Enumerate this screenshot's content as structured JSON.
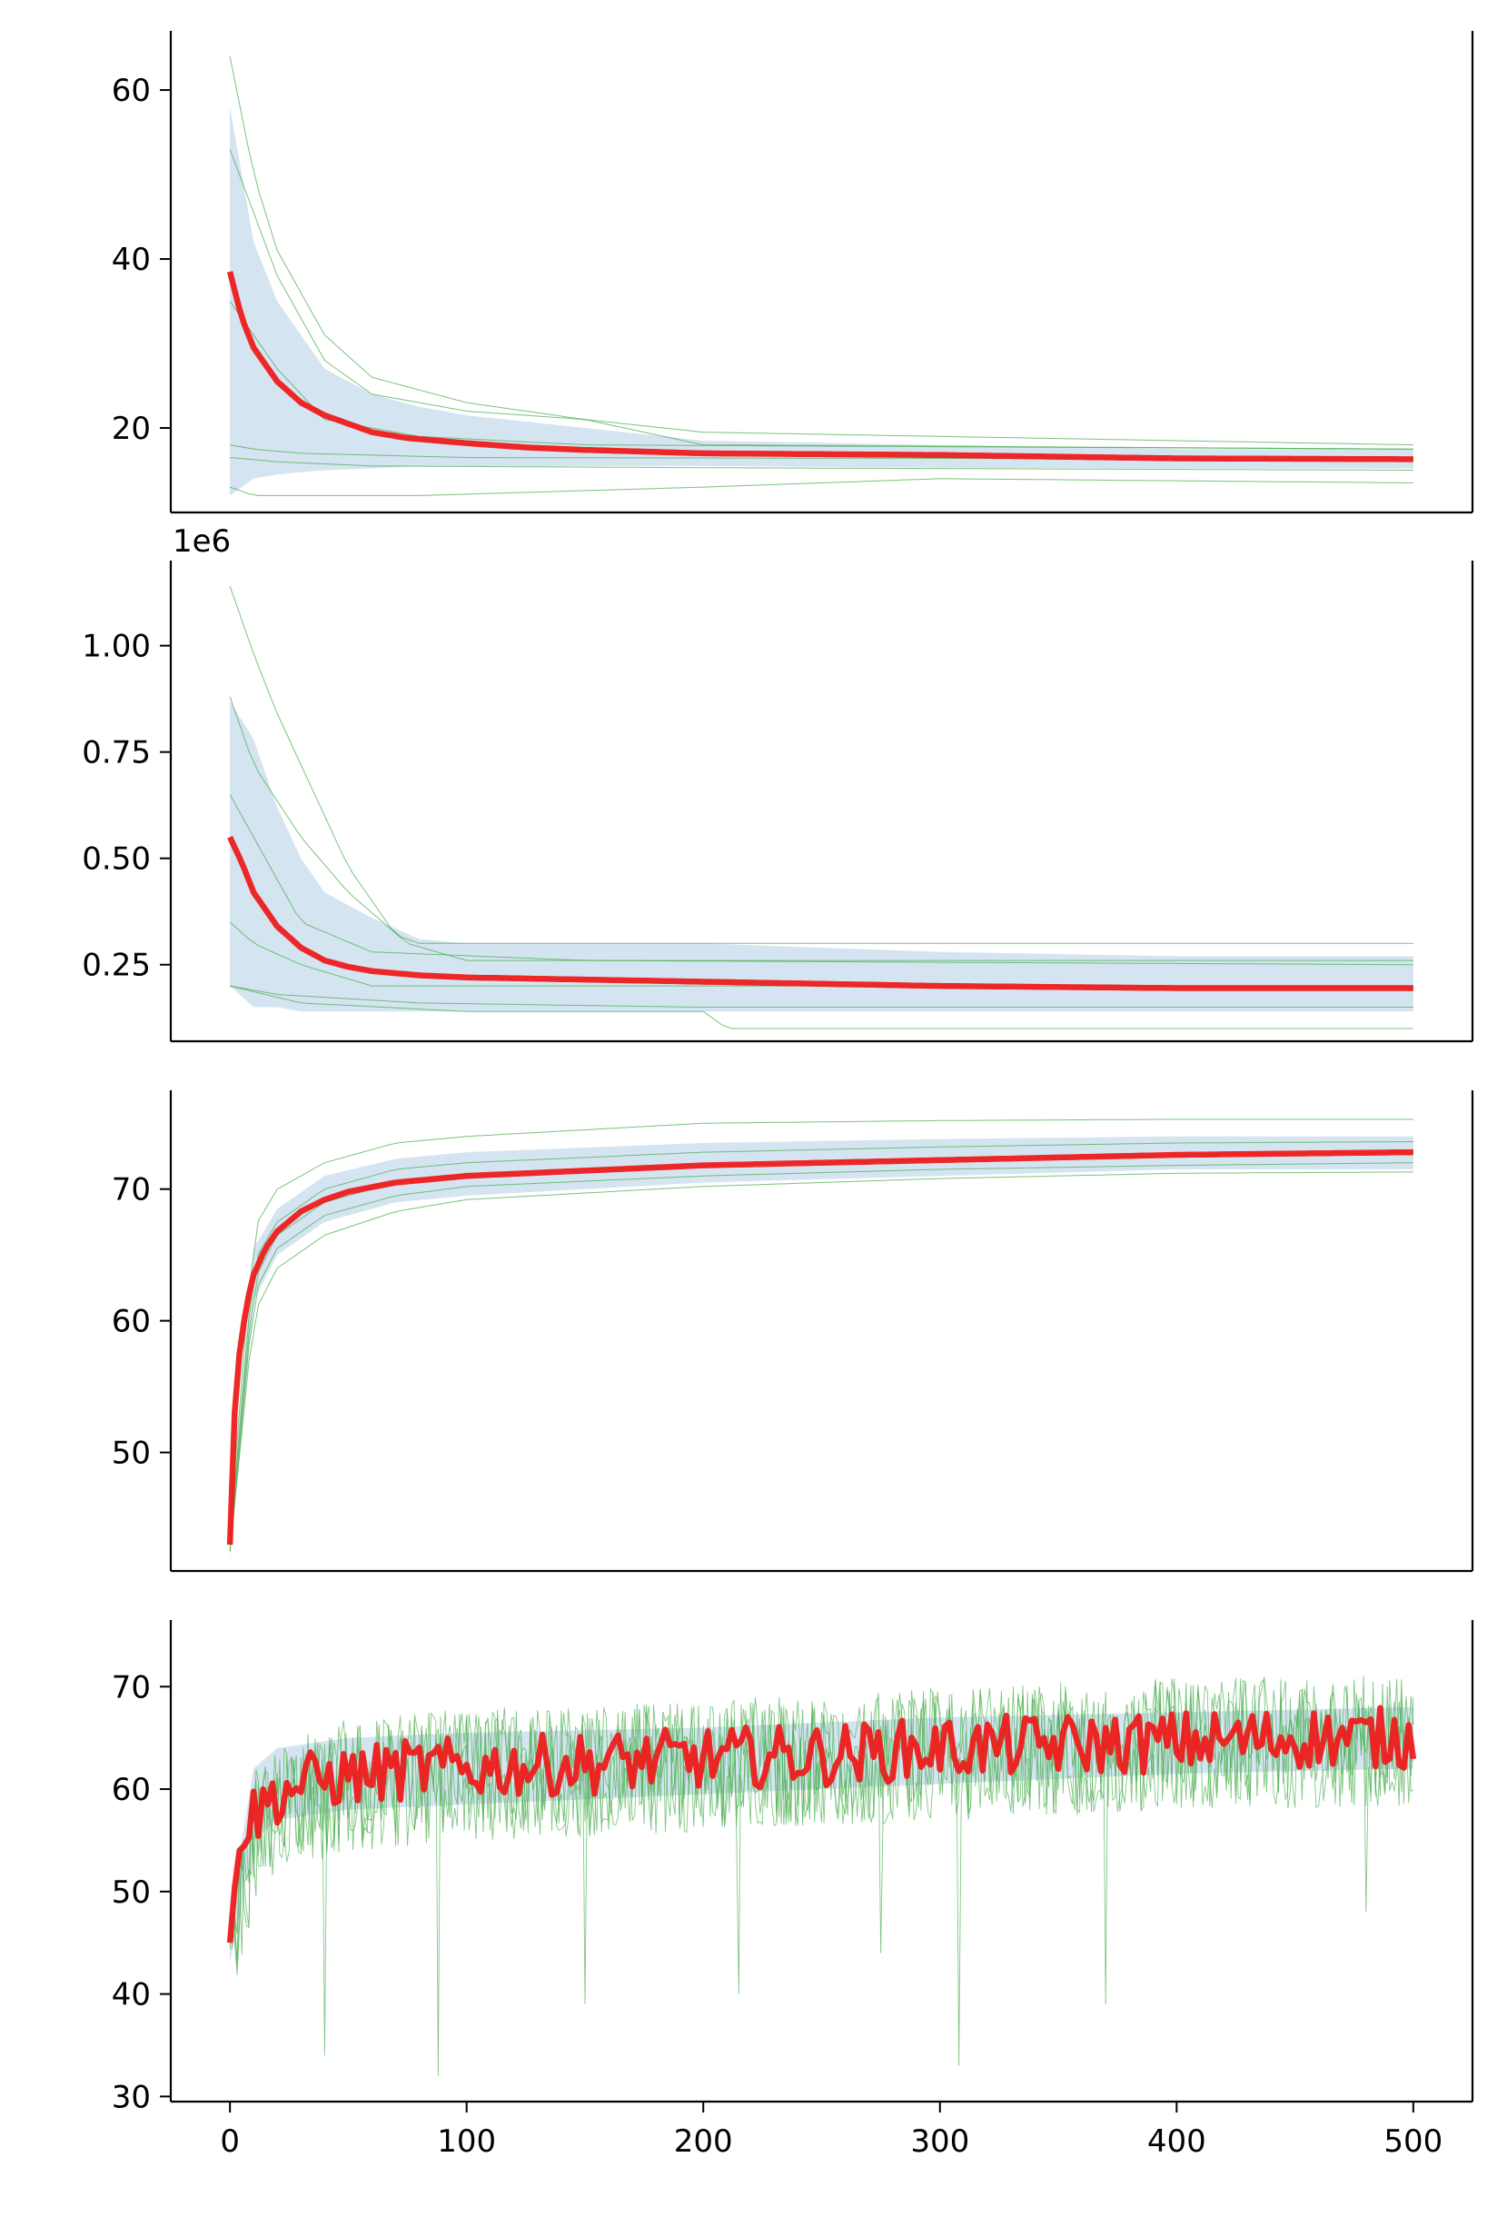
{
  "chart_data": [
    {
      "type": "line",
      "title": "",
      "xlabel": "",
      "ylabel": "",
      "offset_text": "",
      "xlim": [
        -25,
        525
      ],
      "ylim": [
        10,
        67
      ],
      "yticks": [
        20,
        40,
        60
      ],
      "ytick_labels": [
        "20",
        "40",
        "60"
      ],
      "show_xticks": false,
      "grid": false,
      "mean": {
        "name": "mean",
        "x": [
          0,
          5,
          10,
          20,
          30,
          40,
          50,
          60,
          75,
          100,
          125,
          150,
          200,
          300,
          400,
          500
        ],
        "values": [
          38.5,
          33,
          29.5,
          25.5,
          23,
          21.5,
          20.5,
          19.5,
          18.8,
          18.2,
          17.7,
          17.4,
          17.0,
          16.8,
          16.4,
          16.3
        ]
      },
      "band": {
        "x": [
          0,
          10,
          20,
          40,
          60,
          80,
          100,
          150,
          200,
          300,
          400,
          500
        ],
        "upper": [
          58,
          42,
          35,
          27,
          24,
          22.5,
          21.5,
          20,
          18.5,
          18,
          17.5,
          17.5
        ],
        "lower": [
          12,
          14,
          14.5,
          15,
          15.2,
          15.5,
          15.5,
          15.5,
          15.5,
          15.3,
          15.2,
          15.2
        ]
      },
      "runs": [
        {
          "x": [
            0,
            10,
            20,
            40,
            60,
            100,
            150,
            200,
            500
          ],
          "values": [
            64,
            50,
            41,
            31,
            26,
            23,
            21,
            19.5,
            18
          ]
        },
        {
          "x": [
            0,
            20,
            40,
            60,
            100,
            150,
            200,
            500
          ],
          "values": [
            53,
            38,
            28,
            24,
            22,
            21,
            18,
            17.5
          ]
        },
        {
          "x": [
            0,
            10,
            20,
            40,
            80,
            150,
            500
          ],
          "values": [
            35,
            31,
            27,
            21,
            19,
            18,
            17.5
          ]
        },
        {
          "x": [
            0,
            10,
            30,
            100,
            500
          ],
          "values": [
            18,
            17.5,
            17,
            16.5,
            16.3
          ]
        },
        {
          "x": [
            0,
            20,
            60,
            200,
            500
          ],
          "values": [
            16.5,
            16,
            15.5,
            15.3,
            15
          ]
        },
        {
          "x": [
            0,
            10,
            80,
            200,
            300,
            500
          ],
          "values": [
            13,
            12,
            12,
            13,
            14,
            13.5
          ]
        }
      ]
    },
    {
      "type": "line",
      "title": "",
      "xlabel": "",
      "ylabel": "",
      "offset_text": "1e6",
      "xlim": [
        -25,
        525
      ],
      "ylim": [
        0.07,
        1.2
      ],
      "yticks": [
        0.25,
        0.5,
        0.75,
        1.0
      ],
      "ytick_labels": [
        "0.25",
        "0.50",
        "0.75",
        "1.00"
      ],
      "show_xticks": false,
      "grid": false,
      "mean": {
        "name": "mean",
        "x": [
          0,
          5,
          10,
          20,
          30,
          40,
          50,
          60,
          80,
          100,
          150,
          200,
          300,
          400,
          500
        ],
        "values": [
          0.55,
          0.49,
          0.42,
          0.34,
          0.29,
          0.26,
          0.245,
          0.235,
          0.225,
          0.22,
          0.215,
          0.21,
          0.2,
          0.195,
          0.195
        ]
      },
      "band": {
        "x": [
          0,
          10,
          20,
          30,
          40,
          60,
          80,
          100,
          150,
          200,
          300,
          400,
          500
        ],
        "upper": [
          0.87,
          0.78,
          0.62,
          0.5,
          0.42,
          0.36,
          0.31,
          0.3,
          0.3,
          0.3,
          0.28,
          0.27,
          0.27
        ],
        "lower": [
          0.2,
          0.15,
          0.15,
          0.14,
          0.14,
          0.14,
          0.14,
          0.14,
          0.14,
          0.14,
          0.14,
          0.14,
          0.14
        ]
      },
      "runs": [
        {
          "x": [
            0,
            10,
            20,
            30,
            50,
            70,
            80,
            500
          ],
          "values": [
            1.14,
            0.98,
            0.84,
            0.72,
            0.48,
            0.32,
            0.3,
            0.3
          ]
        },
        {
          "x": [
            0,
            10,
            30,
            50,
            75,
            100,
            500
          ],
          "values": [
            0.88,
            0.72,
            0.55,
            0.42,
            0.3,
            0.26,
            0.26
          ]
        },
        {
          "x": [
            0,
            10,
            30,
            60,
            150,
            500
          ],
          "values": [
            0.65,
            0.55,
            0.35,
            0.28,
            0.26,
            0.25
          ]
        },
        {
          "x": [
            0,
            10,
            30,
            60,
            200,
            500
          ],
          "values": [
            0.35,
            0.3,
            0.25,
            0.2,
            0.2,
            0.2
          ]
        },
        {
          "x": [
            0,
            20,
            80,
            200,
            500
          ],
          "values": [
            0.2,
            0.18,
            0.16,
            0.15,
            0.15
          ]
        },
        {
          "x": [
            0,
            30,
            100,
            200,
            210,
            500
          ],
          "values": [
            0.2,
            0.16,
            0.14,
            0.14,
            0.1,
            0.1
          ]
        }
      ]
    },
    {
      "type": "line",
      "title": "",
      "xlabel": "",
      "ylabel": "",
      "offset_text": "",
      "xlim": [
        -25,
        525
      ],
      "ylim": [
        41,
        77.5
      ],
      "yticks": [
        50,
        60,
        70
      ],
      "ytick_labels": [
        "50",
        "60",
        "70"
      ],
      "show_xticks": false,
      "grid": false,
      "mean": {
        "name": "mean",
        "x": [
          0,
          2,
          4,
          6,
          8,
          10,
          15,
          20,
          30,
          40,
          50,
          70,
          100,
          150,
          200,
          300,
          400,
          500
        ],
        "values": [
          43,
          53,
          57.5,
          60,
          62,
          63.5,
          65.5,
          66.8,
          68.3,
          69.2,
          69.8,
          70.5,
          71,
          71.4,
          71.8,
          72.2,
          72.6,
          72.8
        ]
      },
      "band": {
        "x": [
          0,
          10,
          20,
          40,
          70,
          100,
          200,
          300,
          400,
          500
        ],
        "upper": [
          44,
          65.5,
          68.5,
          71,
          72.3,
          72.8,
          73.5,
          73.8,
          74,
          74
        ],
        "lower": [
          42,
          61.5,
          65,
          67.5,
          69,
          69.5,
          70.5,
          71,
          71.5,
          71.5
        ]
      },
      "runs": [
        {
          "x": [
            0,
            10,
            20,
            40,
            70,
            100,
            200,
            300,
            400,
            500
          ],
          "values": [
            44,
            67,
            70,
            72,
            73.5,
            74,
            75,
            75.2,
            75.3,
            75.3
          ]
        },
        {
          "x": [
            0,
            10,
            20,
            40,
            70,
            100,
            200,
            300,
            400,
            500
          ],
          "values": [
            43,
            64.5,
            67.5,
            70,
            71.5,
            72,
            72.8,
            73.2,
            73.5,
            73.6
          ]
        },
        {
          "x": [
            0,
            10,
            20,
            40,
            70,
            100,
            200,
            300,
            400,
            500
          ],
          "values": [
            43,
            63,
            66.5,
            69,
            70.5,
            71.2,
            71.8,
            72.3,
            72.6,
            72.8
          ]
        },
        {
          "x": [
            0,
            10,
            20,
            40,
            70,
            100,
            200,
            300,
            400,
            500
          ],
          "values": [
            42.5,
            62,
            65.5,
            68,
            69.5,
            70.2,
            71,
            71.5,
            71.8,
            72
          ]
        },
        {
          "x": [
            0,
            10,
            20,
            40,
            70,
            100,
            200,
            300,
            400,
            500
          ],
          "values": [
            42.5,
            60.5,
            64,
            66.5,
            68.3,
            69.2,
            70.2,
            70.8,
            71.2,
            71.3
          ]
        }
      ]
    },
    {
      "type": "line",
      "title": "",
      "xlabel": "",
      "ylabel": "",
      "offset_text": "",
      "xlim": [
        -25,
        525
      ],
      "ylim": [
        29.5,
        76.5
      ],
      "yticks": [
        30,
        40,
        50,
        60,
        70
      ],
      "ytick_labels": [
        "30",
        "40",
        "50",
        "60",
        "70"
      ],
      "xticks": [
        0,
        100,
        200,
        300,
        400,
        500
      ],
      "xtick_labels": [
        "0",
        "100",
        "200",
        "300",
        "400",
        "500"
      ],
      "show_xticks": true,
      "grid": false,
      "mean": {
        "name": "mean",
        "x": [
          0,
          3,
          6,
          10,
          15,
          20,
          30,
          40,
          60,
          80,
          100,
          150,
          200,
          250,
          300,
          350,
          400,
          450,
          500
        ],
        "values": [
          45,
          53,
          56,
          57.5,
          58.5,
          59.5,
          60.5,
          61,
          61.5,
          62,
          62,
          62.5,
          63,
          63.3,
          64,
          64.3,
          64.6,
          65,
          65
        ]
      },
      "mean_jitter": 3.0,
      "band": {
        "x": [
          0,
          10,
          20,
          50,
          100,
          200,
          300,
          400,
          500
        ],
        "upper": [
          48,
          62,
          64,
          65,
          65.5,
          66,
          67,
          67.5,
          68
        ],
        "lower": [
          43,
          55,
          57,
          58,
          58.5,
          59.5,
          60.5,
          61.5,
          62
        ]
      },
      "runs_trend": {
        "x": [
          0,
          10,
          20,
          50,
          100,
          200,
          300,
          400,
          500
        ],
        "values": [
          44,
          56,
          59,
          61,
          62,
          63,
          64,
          65,
          65.5
        ]
      },
      "runs_noise": 6.5,
      "runs_count": 4,
      "runs_upper_cap": 73,
      "runs_dips": [
        [
          40,
          34
        ],
        [
          88,
          32
        ],
        [
          150,
          39
        ],
        [
          215,
          40
        ],
        [
          275,
          44
        ],
        [
          308,
          33
        ],
        [
          370,
          39
        ],
        [
          480,
          48
        ]
      ]
    }
  ],
  "colors": {
    "mean": "#ee1c1c",
    "band": "#d3e3f0",
    "runs": "#4caf50",
    "axis": "#000000"
  }
}
